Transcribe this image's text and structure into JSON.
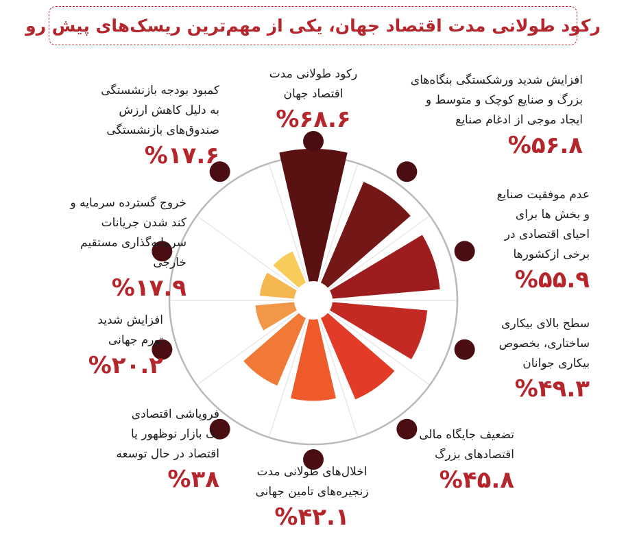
{
  "title": "رکود طولانی مدت اقتصاد جهان، یکی از مهم‌ترین ریسک‌های پیش رو",
  "chart_data": {
    "type": "radial-bar",
    "title": "رکود طولانی مدت اقتصاد جهان، یکی از مهم‌ترین ریسک‌های پیش رو",
    "unit": "%",
    "categories": [
      "رکود طولانی مدت اقتصاد جهان",
      "افزایش شدید ورشکستگی بنگاه‌های بزرگ و صنایع کوچک و متوسط و ایجاد موجی از ادغام صنایع",
      "عدم موفقیت صنایع و بخش ها برای احیای اقتصادی در برخی ازکشورها",
      "سطح بالای بیکاری ساختاری، بخصوص بیکاری جوانان",
      "تضعیف جایگاه مالی اقتصادهای بزرگ",
      "اخلال‌های طولانی مدت زنجیره‌های تامین جهانی",
      "فروپاشی اقتصادی یک بازار نوظهور یا اقتصاد در حال توسعه",
      "افزایش شدید تورم جهانی",
      "خروج گسترده سرمایه و کند شدن جریانات سرمایه‌گذاری مستقیم خارجی",
      "کمبود بودجه بازنشستگی به دلیل کاهش ارزش صندوق‌های بازنشستگی"
    ],
    "values": [
      68.6,
      56.8,
      55.9,
      49.3,
      45.8,
      42.1,
      38,
      20.2,
      17.9,
      17.6
    ],
    "colors": [
      "#5a1111",
      "#741717",
      "#9d1c1e",
      "#c42a24",
      "#e23b27",
      "#ee5a2a",
      "#f07a35",
      "#f29647",
      "#f5b751",
      "#f8cc5a"
    ],
    "grid": true
  },
  "labels": [
    {
      "lines": [
        "رکود طولانی مدت",
        "اقتصاد جهان"
      ],
      "pct": "%۶۸.۶"
    },
    {
      "lines": [
        "افزایش شدید ورشکستگی بنگاه‌های",
        "بزرگ و صنایع کوچک و متوسط و",
        "ایجاد موجی از ادغام صنایع"
      ],
      "pct": "%۵۶.۸"
    },
    {
      "lines": [
        "عدم موفقیت صنایع",
        "و بخش ها برای",
        "احیای اقتصادی در",
        "برخی ازکشورها"
      ],
      "pct": "%۵۵.۹"
    },
    {
      "lines": [
        "سطح بالای بیکاری",
        "ساختاری، بخصوص",
        "بیکاری جوانان"
      ],
      "pct": "%۴۹.۳"
    },
    {
      "lines": [
        "تضعیف جایگاه مالی",
        "اقتصادهای بزرگ"
      ],
      "pct": "%۴۵.۸"
    },
    {
      "lines": [
        "اخلال‌های طولانی مدت",
        "زنجیره‌های تامین جهانی"
      ],
      "pct": "%۴۲.۱"
    },
    {
      "lines": [
        "فروپاشی اقتصادی",
        "یک بازار نوظهور یا",
        "اقتصاد در حال توسعه"
      ],
      "pct": "%۳۸"
    },
    {
      "lines": [
        "افزایش شدید",
        "تورم جهانی"
      ],
      "pct": "%۲۰.۲"
    },
    {
      "lines": [
        "خروج گسترده سرمایه و",
        "کند شدن جریانات",
        "سرمایه‌گذاری مستقیم",
        "خارجی"
      ],
      "pct": "%۱۷.۹"
    },
    {
      "lines": [
        "کمبود بودجه بازنشستگی",
        "به دلیل کاهش ارزش",
        "صندوق‌های بازنشستگی"
      ],
      "pct": "%۱۷.۶"
    }
  ]
}
